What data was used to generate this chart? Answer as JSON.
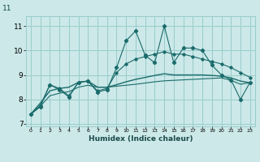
{
  "title": "",
  "xlabel": "Humidex (Indice chaleur)",
  "bg_color": "#cce8e8",
  "grid_color": "#99cccc",
  "line_color": "#1a6b6b",
  "x_values": [
    0,
    1,
    2,
    3,
    4,
    5,
    6,
    7,
    8,
    9,
    10,
    11,
    12,
    13,
    14,
    15,
    16,
    17,
    18,
    19,
    20,
    21,
    22,
    23
  ],
  "series1": [
    7.4,
    7.7,
    8.6,
    8.4,
    8.1,
    8.7,
    8.75,
    8.3,
    8.4,
    9.3,
    10.4,
    10.8,
    9.8,
    9.5,
    11.0,
    9.5,
    10.1,
    10.1,
    10.0,
    9.4,
    9.0,
    8.8,
    8.0,
    8.7
  ],
  "series2": [
    7.4,
    7.75,
    8.6,
    8.45,
    8.15,
    8.7,
    8.75,
    8.35,
    8.45,
    9.1,
    9.45,
    9.65,
    9.75,
    9.85,
    9.95,
    9.85,
    9.85,
    9.75,
    9.65,
    9.55,
    9.45,
    9.3,
    9.1,
    8.9
  ],
  "series3": [
    7.4,
    7.85,
    8.35,
    8.45,
    8.5,
    8.7,
    8.75,
    8.5,
    8.5,
    8.6,
    8.72,
    8.82,
    8.9,
    8.98,
    9.05,
    9.0,
    9.0,
    9.0,
    9.0,
    8.98,
    8.95,
    8.88,
    8.75,
    8.68
  ],
  "series4": [
    7.4,
    7.72,
    8.15,
    8.25,
    8.32,
    8.5,
    8.58,
    8.5,
    8.5,
    8.54,
    8.58,
    8.62,
    8.67,
    8.72,
    8.76,
    8.78,
    8.8,
    8.82,
    8.84,
    8.86,
    8.88,
    8.78,
    8.62,
    8.68
  ],
  "ylim": [
    6.9,
    11.4
  ],
  "yticks": [
    7,
    8,
    9,
    10,
    11
  ],
  "xlim": [
    -0.5,
    23.5
  ]
}
